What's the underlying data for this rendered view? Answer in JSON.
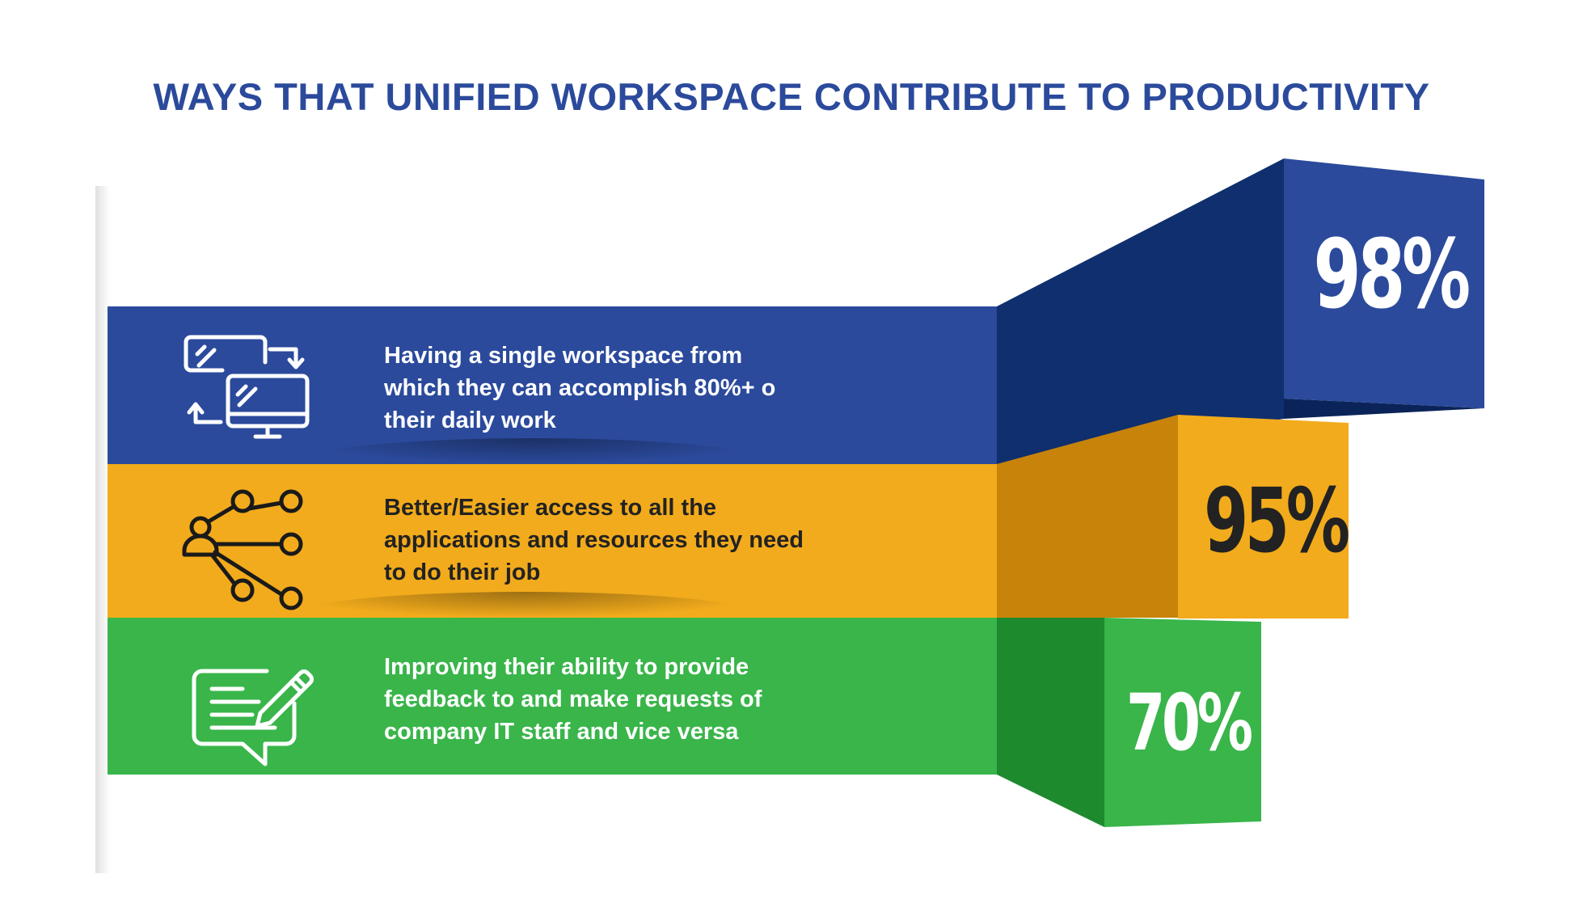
{
  "title": "WAYS THAT UNIFIED WORKSPACE CONTRIBUTE TO PRODUCTIVITY",
  "colors": {
    "title": "#2b4a9c",
    "white_text": "#ffffff",
    "dark_text": "#222222"
  },
  "chart_data": {
    "type": "bar",
    "categories": [
      "Having a single workspace from which they can accomplish 80%+ o their daily work",
      "Better/Easier access to all the applications and resources they need to do their job",
      "Improving their ability to provide feedback to and make requests of company IT staff and vice versa"
    ],
    "values": [
      98,
      95,
      70
    ],
    "value_labels": [
      "98%",
      "95%",
      "70%"
    ],
    "series_colors": [
      "#2b4a9c",
      "#f2ab1c",
      "#39b54a"
    ],
    "icons": [
      "monitors-sync-icon",
      "network-share-icon",
      "feedback-edit-icon"
    ]
  },
  "rows": [
    {
      "text": "Having a single workspace from\nwhich they can accomplish 80%+ o\ntheir daily work"
    },
    {
      "text": "Better/Easier access to all the\napplications and resources they need\nto do their job"
    },
    {
      "text": "Improving their ability to provide\nfeedback to and make requests of\ncompany IT staff and vice versa"
    }
  ]
}
